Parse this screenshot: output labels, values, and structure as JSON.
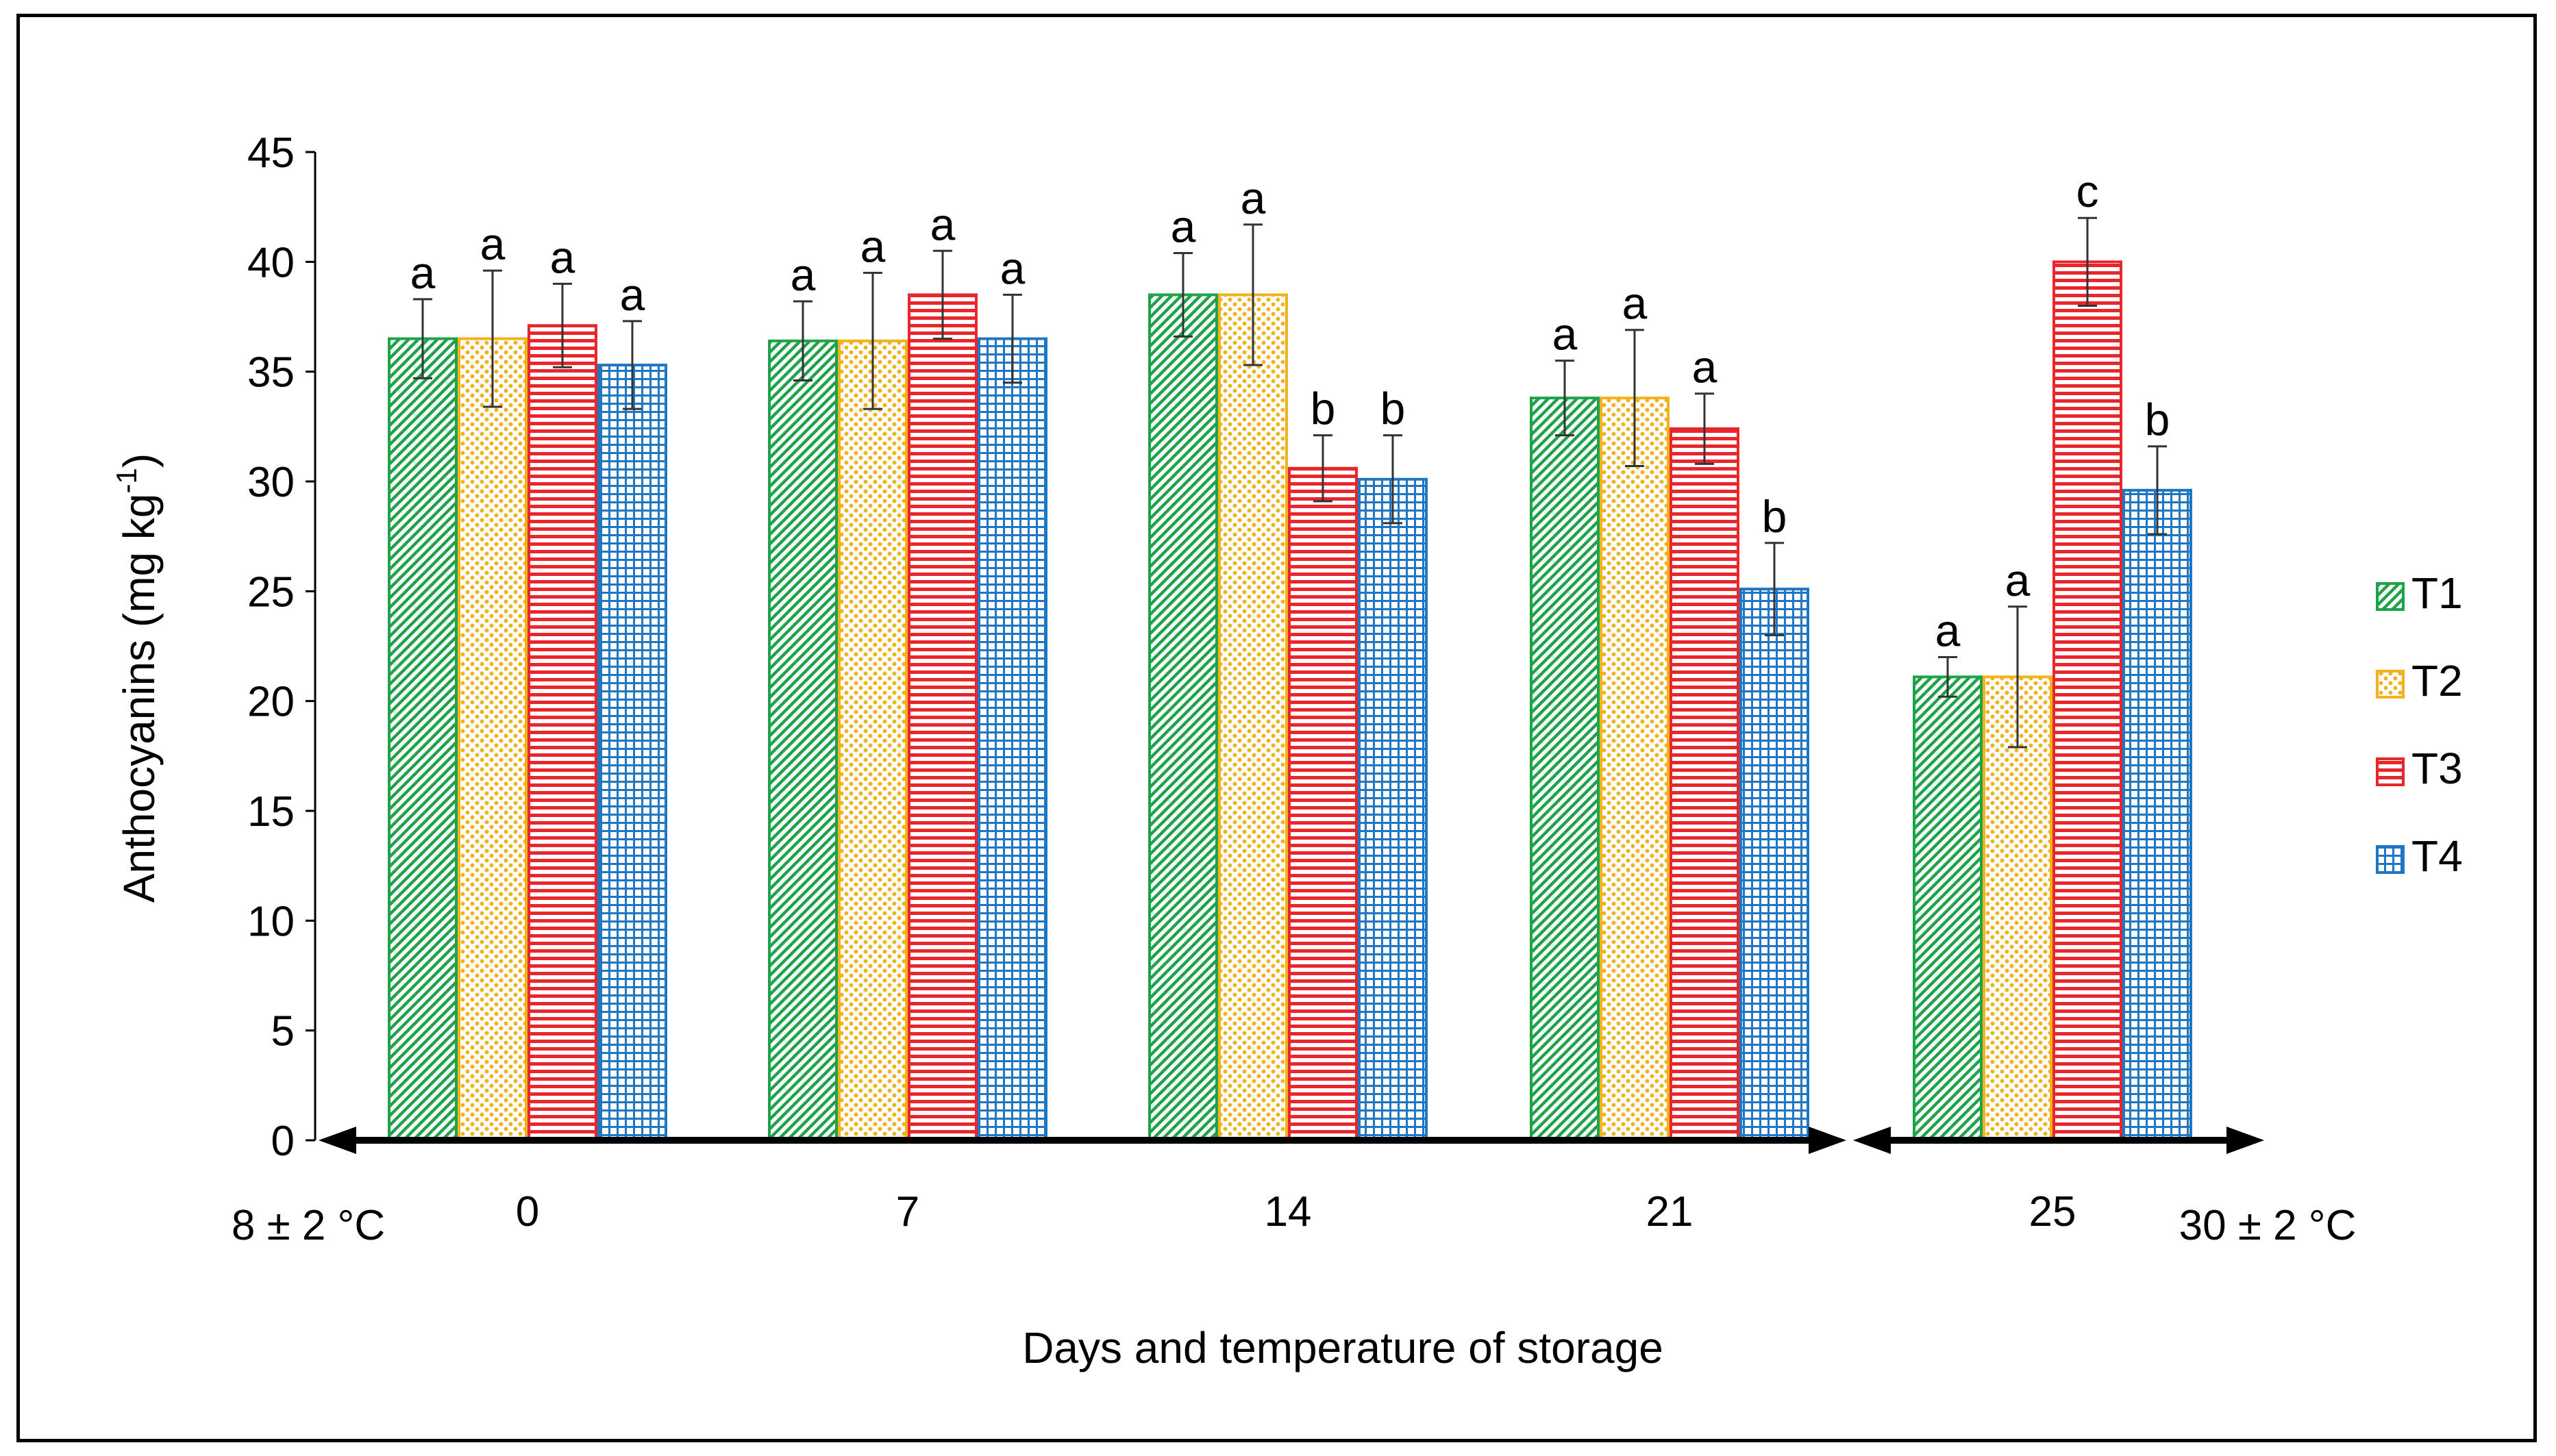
{
  "chart_data": {
    "type": "bar",
    "xlabel": "Days and temperature of storage",
    "ylabel": "Anthocyanins (mg kg",
    "ylabel_superscript": "-1",
    "ylabel_close": ")",
    "ylim": [
      0,
      45
    ],
    "yticks": [
      0,
      5,
      10,
      15,
      20,
      25,
      30,
      35,
      40,
      45
    ],
    "categories": [
      "0",
      "7",
      "14",
      "21",
      "25"
    ],
    "series": [
      {
        "name": "T1",
        "color": "#1fa34a",
        "pattern": "diagonal-stripes",
        "values": [
          36.5,
          36.4,
          38.5,
          33.8,
          21.1
        ],
        "errors": [
          1.8,
          1.8,
          1.9,
          1.7,
          0.9
        ],
        "letters": [
          "a",
          "a",
          "a",
          "a",
          "a"
        ]
      },
      {
        "name": "T2",
        "color": "#f2b21c",
        "pattern": "dots",
        "values": [
          36.5,
          36.4,
          38.5,
          33.8,
          21.1
        ],
        "errors": [
          3.1,
          3.1,
          3.2,
          3.1,
          3.2
        ],
        "letters": [
          "a",
          "a",
          "a",
          "a",
          "a"
        ]
      },
      {
        "name": "T3",
        "color": "#e8262b",
        "pattern": "horizontal-stripes",
        "values": [
          37.1,
          38.5,
          30.6,
          32.4,
          40.0
        ],
        "errors": [
          1.9,
          2.0,
          1.5,
          1.6,
          2.0
        ],
        "letters": [
          "a",
          "a",
          "b",
          "a",
          "c"
        ]
      },
      {
        "name": "T4",
        "color": "#1f77c4",
        "pattern": "grid",
        "values": [
          35.3,
          36.5,
          30.1,
          25.1,
          29.6
        ],
        "errors": [
          2.0,
          2.0,
          2.0,
          2.1,
          2.0
        ],
        "letters": [
          "a",
          "a",
          "b",
          "b",
          "b"
        ]
      }
    ],
    "legend_position": "right",
    "grid": false,
    "annotations": {
      "low_temp": "8 ± 2 °C",
      "high_temp": "30 ± 2 °C"
    }
  }
}
